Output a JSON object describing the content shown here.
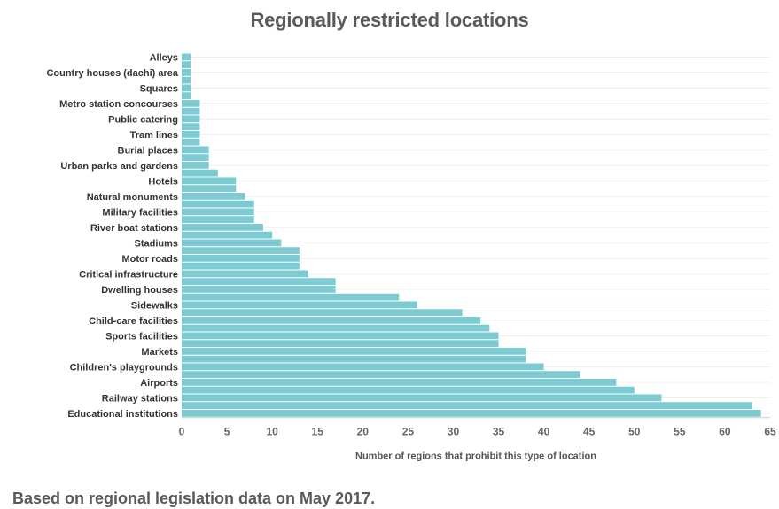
{
  "chart_data": {
    "type": "bar",
    "orientation": "horizontal",
    "title": "Regionally restricted locations",
    "xlabel": "Number of regions that prohibit this type of location",
    "ylabel": "",
    "xlim": [
      0,
      65
    ],
    "x_ticks": [
      0,
      5,
      10,
      15,
      20,
      25,
      30,
      35,
      40,
      45,
      50,
      55,
      60,
      65
    ],
    "grid": true,
    "bar_color": "#7ccad2",
    "categories": [
      "Alleys",
      "",
      "Country houses (dachi) area",
      "",
      "Squares",
      "",
      "Metro station concourses",
      "",
      "Public catering",
      "",
      "Tram lines",
      "",
      "Burial places",
      "",
      "Urban parks and gardens",
      "",
      "Hotels",
      "",
      "Natural monuments",
      "",
      "Military facilities",
      "",
      "River boat stations",
      "",
      "Stadiums",
      "",
      "Motor roads",
      "",
      "Critical infrastructure",
      "",
      "Dwelling houses",
      "",
      "Sidewalks",
      "",
      "Child-care facilities",
      "",
      "Sports facilities",
      "",
      "Markets",
      "",
      "Children's playgrounds",
      "",
      "Airports",
      "",
      "Railway stations",
      "",
      "Educational institutions"
    ],
    "values": [
      1,
      1,
      1,
      1,
      1,
      1,
      2,
      2,
      2,
      2,
      2,
      2,
      3,
      3,
      3,
      4,
      6,
      6,
      7,
      8,
      8,
      8,
      9,
      10,
      11,
      13,
      13,
      13,
      14,
      17,
      17,
      24,
      26,
      31,
      33,
      34,
      35,
      35,
      38,
      38,
      40,
      44,
      48,
      50,
      53,
      63,
      64
    ]
  },
  "footnote": "Based on regional legislation data on May 2017."
}
